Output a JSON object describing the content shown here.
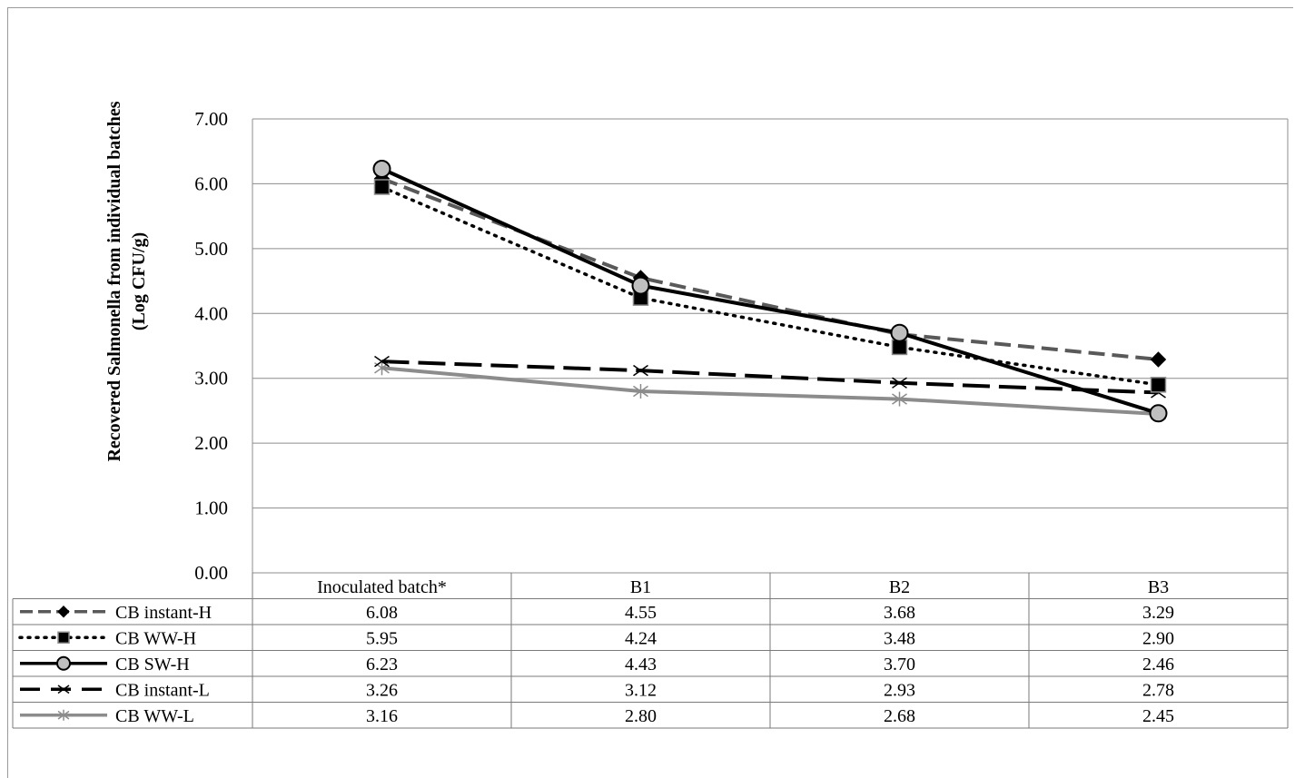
{
  "chart_data": {
    "type": "line",
    "title": "",
    "ylabel_line1": "Recovered Salmonella from individual batches",
    "ylabel_line2": "(Log CFU/g)",
    "xlabel": "",
    "ylim": [
      0,
      7
    ],
    "yticks": [
      "0.00",
      "1.00",
      "2.00",
      "3.00",
      "4.00",
      "5.00",
      "6.00",
      "7.00"
    ],
    "categories": [
      "Inoculated batch*",
      "B1",
      "B2",
      "B3"
    ],
    "grid": "horizontal",
    "legend_placement": "data-table",
    "series": [
      {
        "name": "CB instant-H",
        "values": [
          6.08,
          4.55,
          3.68,
          3.29
        ],
        "labels": [
          "6.08",
          "4.55",
          "3.68",
          "3.29"
        ],
        "color": "#595959",
        "dash": "dashed",
        "marker": "diamond"
      },
      {
        "name": "CB WW-H",
        "values": [
          5.95,
          4.24,
          3.48,
          2.9
        ],
        "labels": [
          "5.95",
          "4.24",
          "3.48",
          "2.90"
        ],
        "color": "#000000",
        "dash": "dotted",
        "marker": "square"
      },
      {
        "name": "CB SW-H",
        "values": [
          6.23,
          4.43,
          3.7,
          2.46
        ],
        "labels": [
          "6.23",
          "4.43",
          "3.70",
          "2.46"
        ],
        "color": "#000000",
        "dash": "solid",
        "marker": "circle"
      },
      {
        "name": "CB instant-L",
        "values": [
          3.26,
          3.12,
          2.93,
          2.78
        ],
        "labels": [
          "3.26",
          "3.12",
          "2.93",
          "2.78"
        ],
        "color": "#000000",
        "dash": "long-dash",
        "marker": "x"
      },
      {
        "name": "CB WW-L",
        "values": [
          3.16,
          2.8,
          2.68,
          2.45
        ],
        "labels": [
          "3.16",
          "2.80",
          "2.68",
          "2.45"
        ],
        "color": "#8c8c8c",
        "dash": "solid",
        "marker": "star"
      }
    ]
  }
}
